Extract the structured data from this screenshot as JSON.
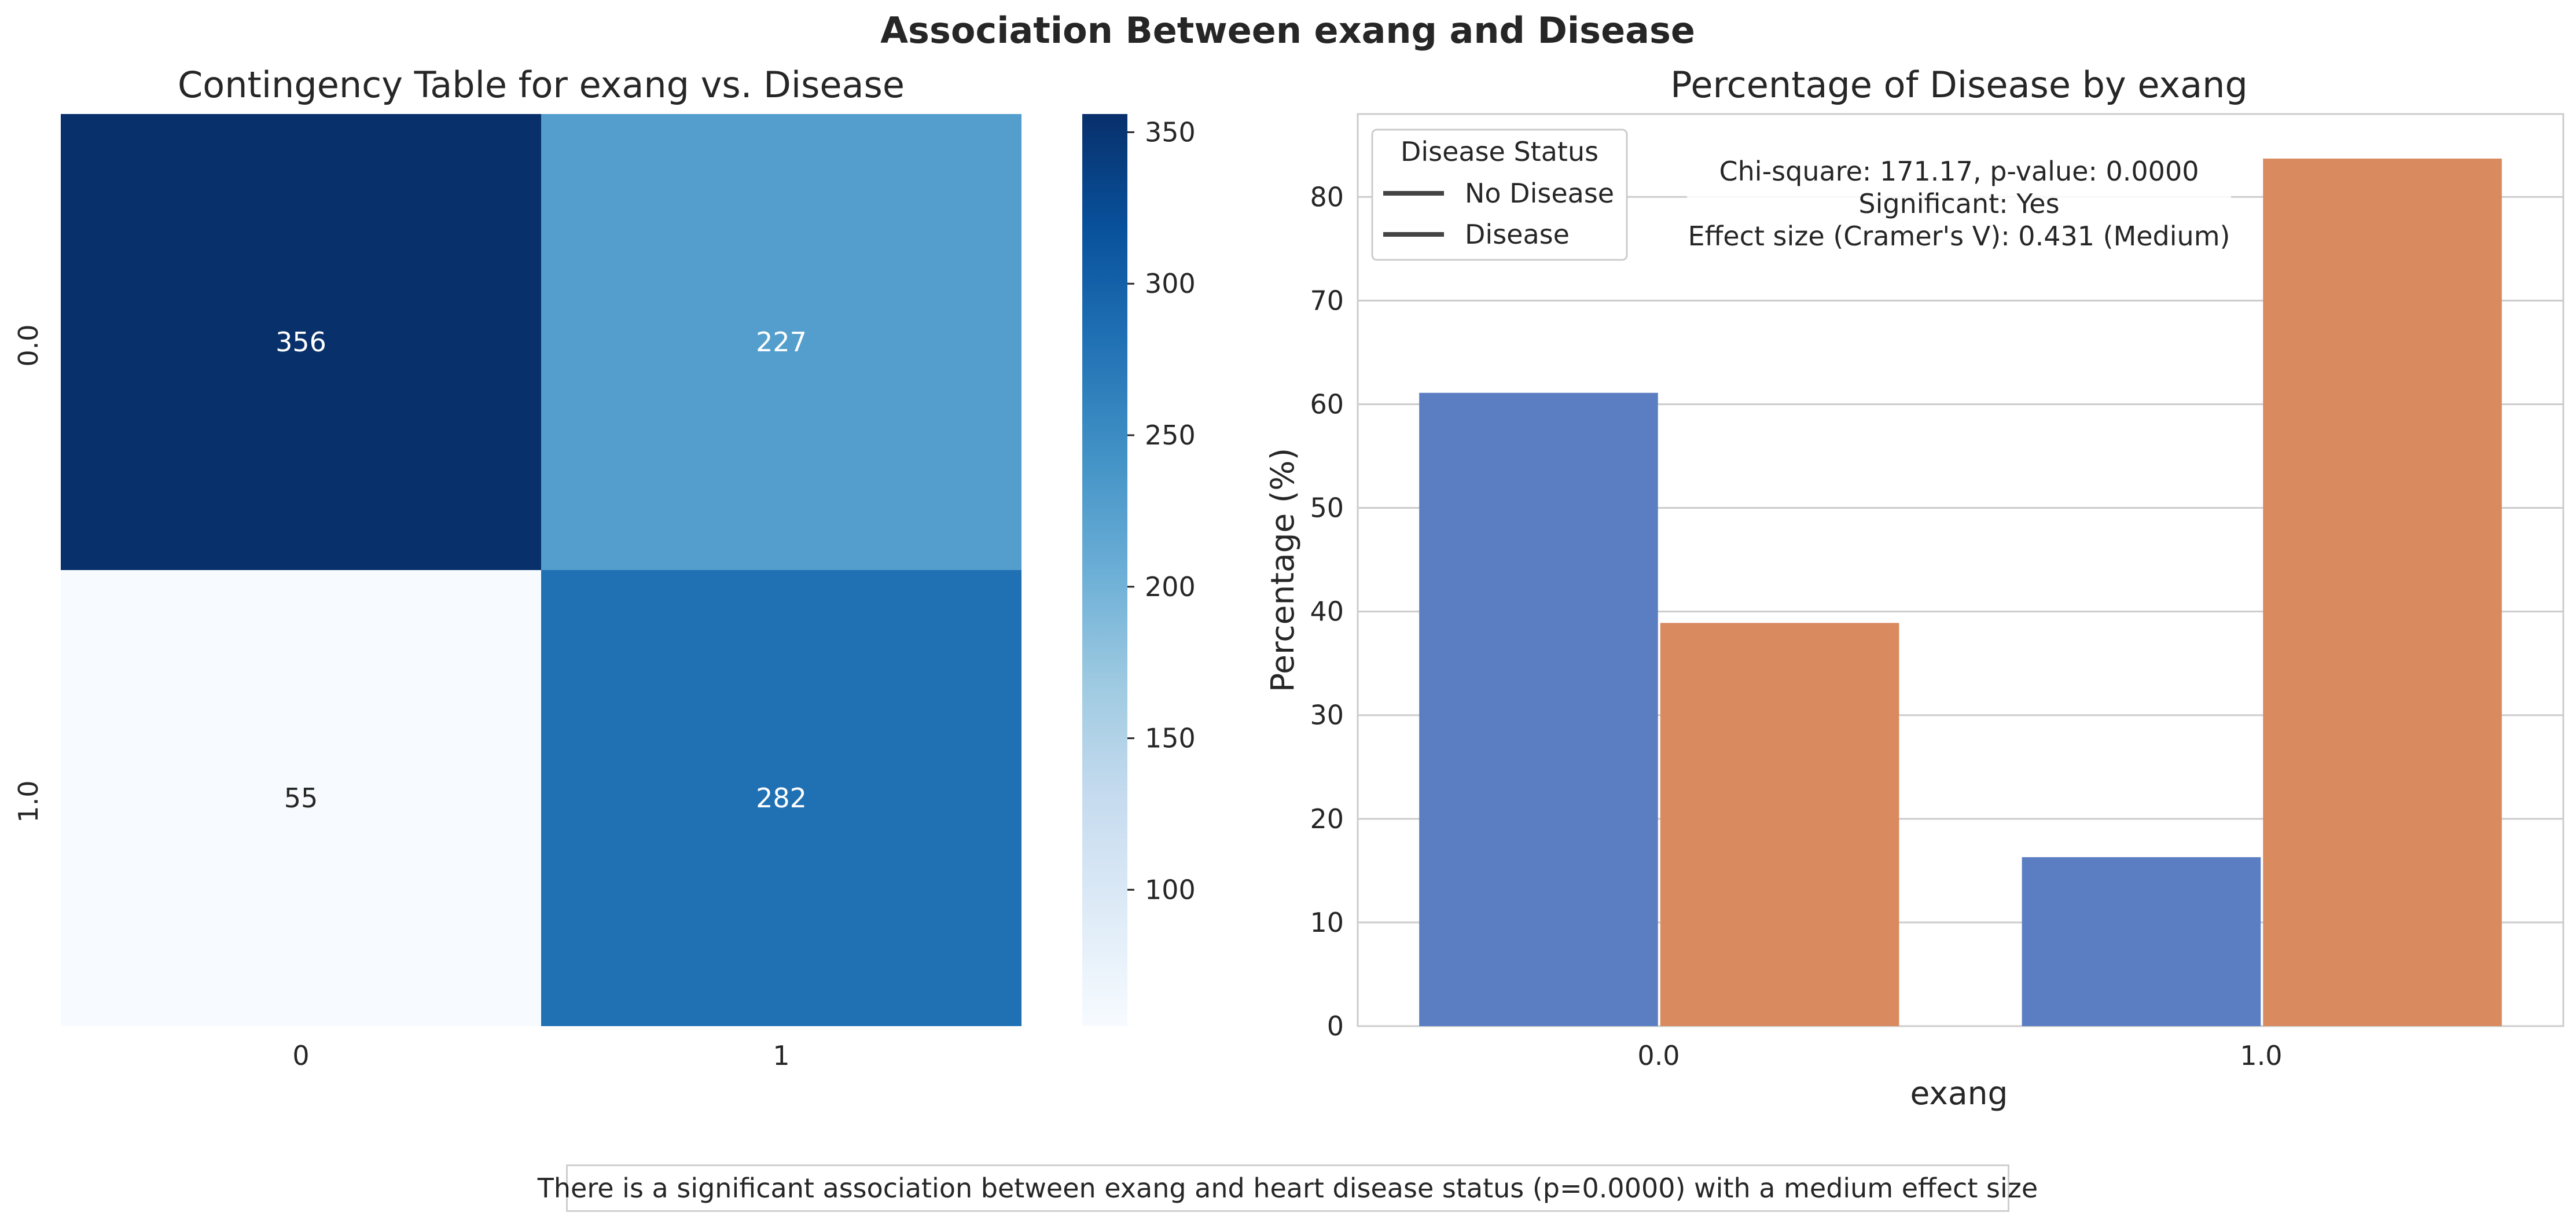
{
  "suptitle": "Association Between exang and Disease",
  "chart_data": [
    {
      "type": "heatmap",
      "title": "Contingency Table for exang vs. Disease",
      "row_labels": [
        "0.0",
        "1.0"
      ],
      "col_labels": [
        "0",
        "1"
      ],
      "values": [
        [
          356,
          227
        ],
        [
          55,
          282
        ]
      ],
      "colormap": "Blues",
      "colorbar": {
        "ticks": [
          "100",
          "150",
          "200",
          "250",
          "300",
          "350"
        ],
        "vmin": 55,
        "vmax": 356
      }
    },
    {
      "type": "bar",
      "title": "Percentage of Disease by exang",
      "xlabel": "exang",
      "ylabel": "Percentage (%)",
      "categories": [
        "0.0",
        "1.0"
      ],
      "series": [
        {
          "name": "No Disease",
          "color": "#5b7ec2",
          "values": [
            61.1,
            16.3
          ]
        },
        {
          "name": "Disease",
          "color": "#d98a5f",
          "values": [
            38.9,
            83.7
          ]
        }
      ],
      "ylim": [
        0,
        88
      ],
      "yticks": [
        "0",
        "10",
        "20",
        "30",
        "40",
        "50",
        "60",
        "70",
        "80"
      ],
      "grid": true,
      "legend": {
        "title": "Disease Status",
        "placement": "top-left",
        "entries": [
          "No Disease",
          "Disease"
        ]
      },
      "annotation": [
        "Chi-square: 171.17, p-value: 0.0000",
        "Significant: Yes",
        "Effect size (Cramer's V): 0.431 (Medium)"
      ]
    }
  ],
  "footer_text": "There is a significant association between exang and heart disease status (p=0.0000) with a medium effect size"
}
